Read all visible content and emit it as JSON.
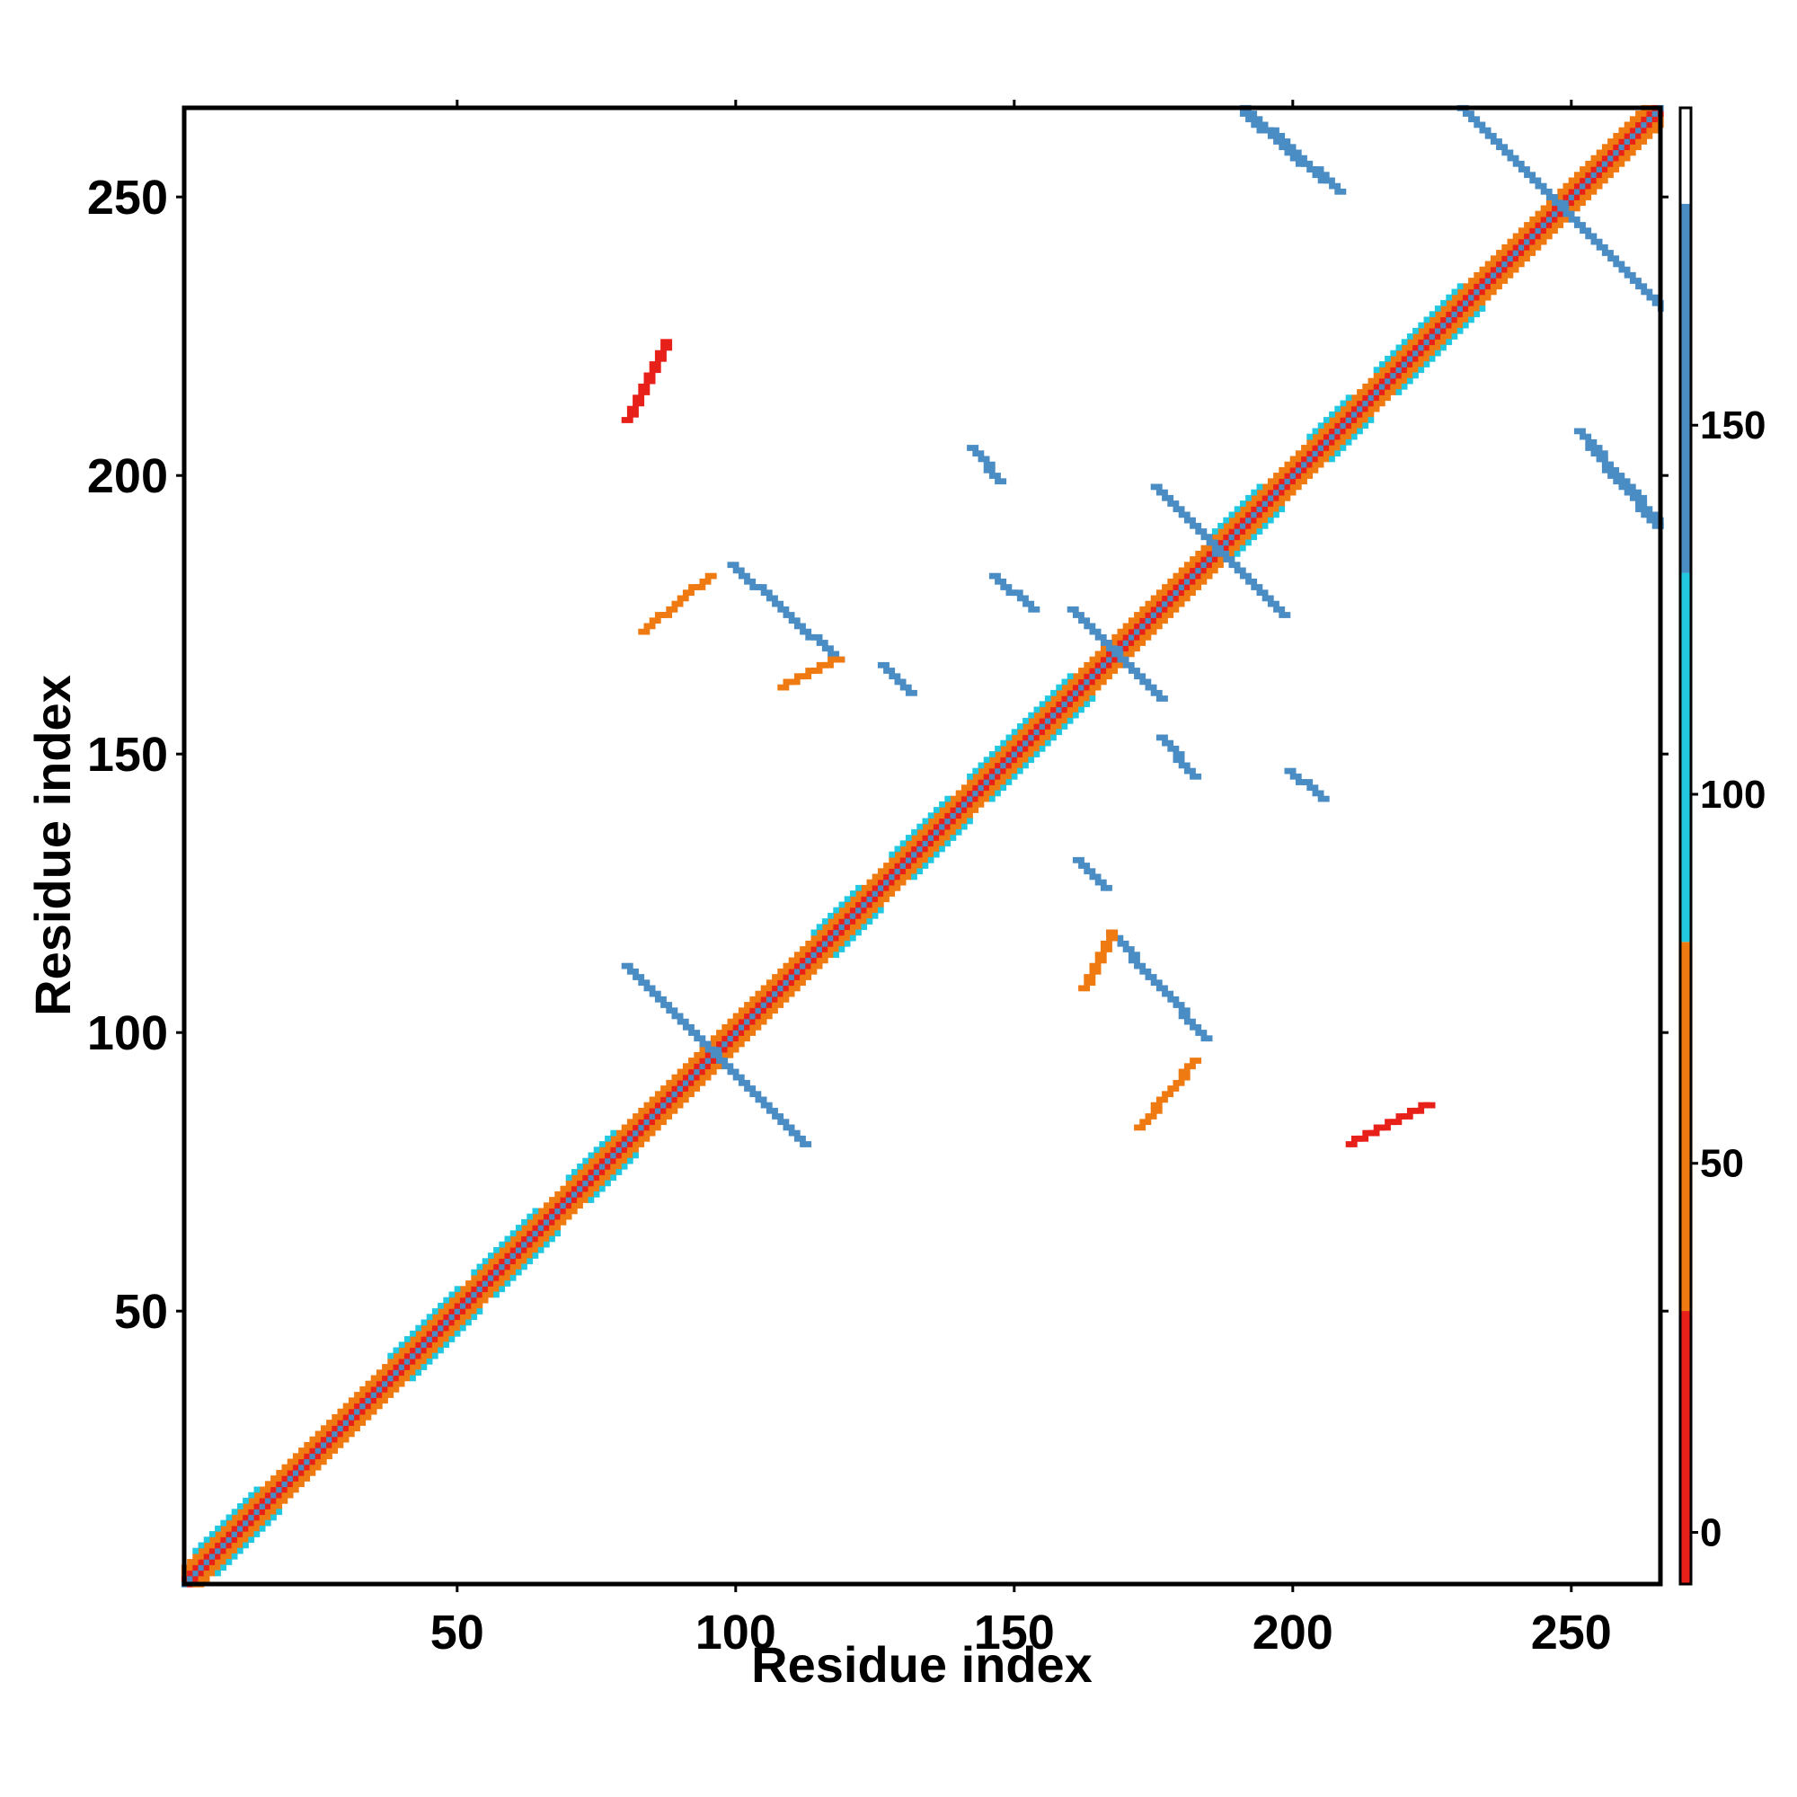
{
  "chart_data": {
    "type": "heatmap",
    "title": "",
    "xlabel": "Residue index",
    "ylabel": "Residue index",
    "xlim": [
      1,
      266
    ],
    "ylim": [
      1,
      266
    ],
    "x_ticks": [
      "50",
      "100",
      "150",
      "200",
      "250"
    ],
    "y_ticks": [
      "50",
      "100",
      "150",
      "200",
      "250"
    ],
    "symmetric": true,
    "diagonal": {
      "start": 1,
      "end": 266,
      "bands": [
        {
          "offset": 0,
          "value": 130
        },
        {
          "offset": 1,
          "value": 5
        },
        {
          "offset": 2,
          "value": 40
        },
        {
          "offset": 3,
          "value": 75
        }
      ]
    },
    "helix_regions": [
      [
        3,
        14
      ],
      [
        38,
        50
      ],
      [
        53,
        64
      ],
      [
        70,
        78
      ],
      [
        114,
        122
      ],
      [
        128,
        138
      ],
      [
        142,
        160
      ],
      [
        185,
        194
      ],
      [
        203,
        210
      ],
      [
        215,
        230
      ]
    ],
    "contacts": [
      {
        "name": "sheet-antiparallel-1",
        "from": [
          80,
          112
        ],
        "to": [
          112,
          80
        ],
        "value": 160
      },
      {
        "name": "sheet-antiparallel-2",
        "from": [
          160,
          176
        ],
        "to": [
          176,
          160
        ],
        "value": 160
      },
      {
        "name": "sheet-antiparallel-3",
        "from": [
          175,
          198
        ],
        "to": [
          198,
          175
        ],
        "value": 160
      },
      {
        "name": "sheet-antiparallel-4",
        "from": [
          230,
          266
        ],
        "to": [
          266,
          230
        ],
        "value": 160
      },
      {
        "name": "hairpin-99-184",
        "from": [
          99,
          184
        ],
        "to": [
          118,
          167
        ],
        "value": 160
      },
      {
        "name": "hairpin-184-99",
        "from": [
          184,
          99
        ],
        "to": [
          167,
          118
        ],
        "value": 160
      },
      {
        "name": "strand-191-266",
        "from": [
          191,
          266
        ],
        "to": [
          208,
          251
        ],
        "value": 160
      },
      {
        "name": "strand-266-191",
        "from": [
          266,
          191
        ],
        "to": [
          251,
          208
        ],
        "value": 160
      },
      {
        "name": "strand-142-205",
        "from": [
          142,
          205
        ],
        "to": [
          147,
          199
        ],
        "value": 160
      },
      {
        "name": "strand-205-142",
        "from": [
          205,
          142
        ],
        "to": [
          199,
          147
        ],
        "value": 160
      },
      {
        "name": "strand-146-182",
        "from": [
          146,
          182
        ],
        "to": [
          153,
          176
        ],
        "value": 160
      },
      {
        "name": "strand-182-146",
        "from": [
          182,
          146
        ],
        "to": [
          176,
          153
        ],
        "value": 160
      },
      {
        "name": "strand-126-166",
        "from": [
          126,
          166
        ],
        "to": [
          131,
          161
        ],
        "value": 160
      },
      {
        "name": "strand-166-126",
        "from": [
          166,
          126
        ],
        "to": [
          161,
          131
        ],
        "value": 160
      },
      {
        "name": "strand-253-205",
        "from": [
          253,
          205
        ],
        "to": [
          265,
          191
        ],
        "value": 160
      },
      {
        "name": "strand-205-253",
        "from": [
          205,
          253
        ],
        "to": [
          191,
          265
        ],
        "value": 160
      },
      {
        "name": "loop-80-210",
        "from": [
          80,
          210
        ],
        "to": [
          87,
          224
        ],
        "value": 10
      },
      {
        "name": "loop-210-80",
        "from": [
          210,
          80
        ],
        "to": [
          224,
          87
        ],
        "value": 10
      },
      {
        "name": "loop-83-172",
        "from": [
          83,
          172
        ],
        "to": [
          95,
          182
        ],
        "value": 45
      },
      {
        "name": "loop-172-83",
        "from": [
          172,
          83
        ],
        "to": [
          182,
          95
        ],
        "value": 45
      },
      {
        "name": "loop-108-162",
        "from": [
          108,
          162
        ],
        "to": [
          118,
          167
        ],
        "value": 45
      },
      {
        "name": "loop-162-108",
        "from": [
          162,
          108
        ],
        "to": [
          167,
          118
        ],
        "value": 45
      }
    ],
    "colorbar": {
      "ticks": [
        "0",
        "50",
        "100",
        "150"
      ],
      "range": [
        -7,
        193
      ],
      "bands": [
        {
          "from": -7,
          "to": 30,
          "color": "#e8201a"
        },
        {
          "from": 30,
          "to": 80,
          "color": "#f07a12"
        },
        {
          "from": 80,
          "to": 130,
          "color": "#22c8e0"
        },
        {
          "from": 130,
          "to": 180,
          "color": "#4a8cc4"
        },
        {
          "from": 180,
          "to": 193,
          "color": "#ffffff"
        }
      ]
    }
  }
}
